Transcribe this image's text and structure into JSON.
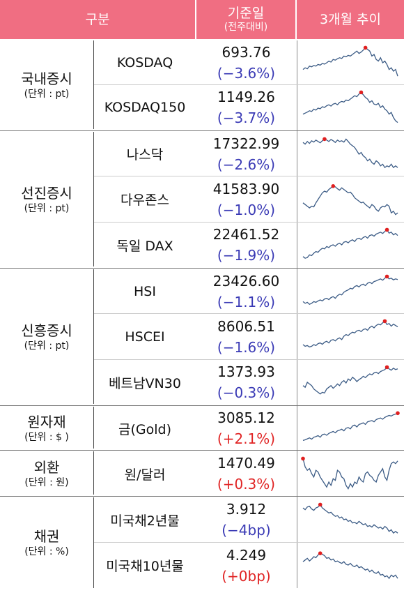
{
  "header": {
    "category": "구분",
    "value_main": "기준일",
    "value_sub": "(전주대비)",
    "trend": "3개월 추이"
  },
  "colors": {
    "header_bg": "#f06e82",
    "negative": "#3a3ab5",
    "positive": "#e02424",
    "spark_line": "#3b5b85",
    "spark_dot": "#e02020"
  },
  "groups": [
    {
      "name": "국내증시",
      "unit": "(단위 : pt)",
      "items": [
        {
          "name": "KOSDAQ",
          "value": "693.76",
          "change": "(−3.6%)",
          "dir": "neg"
        },
        {
          "name": "KOSDAQ150",
          "value": "1149.26",
          "change": "(−3.7%)",
          "dir": "neg"
        }
      ]
    },
    {
      "name": "선진증시",
      "unit": "(단위 : pt)",
      "items": [
        {
          "name": "나스닥",
          "value": "17322.99",
          "change": "(−2.6%)",
          "dir": "neg"
        },
        {
          "name": "다우존스",
          "value": "41583.90",
          "change": "(−1.0%)",
          "dir": "neg"
        },
        {
          "name": "독일 DAX",
          "value": "22461.52",
          "change": "(−1.9%)",
          "dir": "neg"
        }
      ]
    },
    {
      "name": "신흥증시",
      "unit": "(단위 : pt)",
      "items": [
        {
          "name": "HSI",
          "value": "23426.60",
          "change": "(−1.1%)",
          "dir": "neg"
        },
        {
          "name": "HSCEI",
          "value": "8606.51",
          "change": "(−1.6%)",
          "dir": "neg"
        },
        {
          "name": "베트남VN30",
          "value": "1373.93",
          "change": "(−0.3%)",
          "dir": "neg"
        }
      ]
    },
    {
      "name": "원자재",
      "unit": "(단위 : $ )",
      "items": [
        {
          "name": "금(Gold)",
          "value": "3085.12",
          "change": "(+2.1%)",
          "dir": "pos"
        }
      ]
    },
    {
      "name": "외환",
      "unit": "(단위 : 원)",
      "items": [
        {
          "name": "원/달러",
          "value": "1470.49",
          "change": "(+0.3%)",
          "dir": "pos"
        }
      ]
    },
    {
      "name": "채권",
      "unit": "(단위 : %)",
      "items": [
        {
          "name": "미국채2년물",
          "value": "3.912",
          "change": "(−4bp)",
          "dir": "neg"
        },
        {
          "name": "미국채10년물",
          "value": "4.249",
          "change": "(+0bp)",
          "dir": "pos"
        }
      ]
    }
  ],
  "sparklines": [
    [
      0.3,
      0.35,
      0.32,
      0.4,
      0.38,
      0.42,
      0.4,
      0.45,
      0.43,
      0.48,
      0.46,
      0.5,
      0.55,
      0.52,
      0.6,
      0.58,
      0.62,
      0.65,
      0.63,
      0.7,
      0.68,
      0.72,
      0.7,
      0.75,
      0.8,
      0.85,
      0.78,
      0.82,
      0.88,
      0.95,
      0.9,
      0.85,
      0.7,
      0.75,
      0.6,
      0.55,
      0.65,
      0.5,
      0.55,
      0.45,
      0.3,
      0.35,
      0.25,
      0.3,
      0.1
    ],
    [
      0.3,
      0.33,
      0.36,
      0.4,
      0.38,
      0.45,
      0.42,
      0.48,
      0.46,
      0.52,
      0.5,
      0.55,
      0.58,
      0.54,
      0.6,
      0.62,
      0.58,
      0.65,
      0.68,
      0.66,
      0.72,
      0.7,
      0.75,
      0.8,
      0.85,
      0.82,
      0.9,
      0.95,
      0.88,
      0.8,
      0.75,
      0.65,
      0.7,
      0.6,
      0.58,
      0.62,
      0.5,
      0.55,
      0.45,
      0.4,
      0.3,
      0.35,
      0.2,
      0.1,
      0.05
    ],
    [
      0.85,
      0.8,
      0.88,
      0.82,
      0.9,
      0.86,
      0.92,
      0.88,
      0.84,
      0.9,
      0.95,
      0.92,
      0.88,
      0.94,
      0.9,
      0.85,
      0.92,
      0.88,
      0.9,
      0.86,
      0.95,
      0.88,
      0.8,
      0.75,
      0.7,
      0.6,
      0.5,
      0.55,
      0.45,
      0.4,
      0.3,
      0.35,
      0.25,
      0.2,
      0.3,
      0.25,
      0.15,
      0.2,
      0.1,
      0.15,
      0.12,
      0.2,
      0.1,
      0.15,
      0.1
    ],
    [
      0.4,
      0.35,
      0.3,
      0.25,
      0.3,
      0.28,
      0.4,
      0.5,
      0.6,
      0.7,
      0.75,
      0.72,
      0.8,
      0.85,
      0.9,
      0.88,
      0.82,
      0.78,
      0.85,
      0.8,
      0.75,
      0.7,
      0.72,
      0.65,
      0.55,
      0.5,
      0.45,
      0.4,
      0.42,
      0.35,
      0.3,
      0.25,
      0.35,
      0.3,
      0.2,
      0.15,
      0.25,
      0.3,
      0.28,
      0.35,
      0.3,
      0.1,
      0.15,
      0.05,
      0.1
    ],
    [
      0.15,
      0.1,
      0.12,
      0.2,
      0.18,
      0.25,
      0.3,
      0.28,
      0.35,
      0.4,
      0.38,
      0.45,
      0.42,
      0.48,
      0.5,
      0.46,
      0.52,
      0.55,
      0.5,
      0.58,
      0.6,
      0.56,
      0.62,
      0.65,
      0.6,
      0.68,
      0.7,
      0.66,
      0.72,
      0.75,
      0.7,
      0.78,
      0.8,
      0.76,
      0.82,
      0.85,
      0.88,
      0.84,
      0.9,
      0.95,
      0.85,
      0.88,
      0.8,
      0.84,
      0.78
    ],
    [
      0.2,
      0.15,
      0.18,
      0.12,
      0.15,
      0.2,
      0.18,
      0.22,
      0.25,
      0.22,
      0.28,
      0.3,
      0.26,
      0.32,
      0.35,
      0.3,
      0.38,
      0.42,
      0.4,
      0.48,
      0.52,
      0.55,
      0.6,
      0.58,
      0.65,
      0.68,
      0.64,
      0.7,
      0.72,
      0.68,
      0.75,
      0.78,
      0.74,
      0.8,
      0.82,
      0.85,
      0.88,
      0.84,
      0.9,
      0.95,
      0.88,
      0.9,
      0.85,
      0.88,
      0.86
    ],
    [
      0.25,
      0.2,
      0.22,
      0.18,
      0.2,
      0.25,
      0.22,
      0.28,
      0.3,
      0.26,
      0.32,
      0.35,
      0.3,
      0.38,
      0.4,
      0.36,
      0.42,
      0.45,
      0.4,
      0.5,
      0.55,
      0.52,
      0.58,
      0.62,
      0.6,
      0.66,
      0.68,
      0.64,
      0.7,
      0.72,
      0.68,
      0.76,
      0.8,
      0.75,
      0.82,
      0.86,
      0.84,
      0.9,
      0.95,
      0.85,
      0.88,
      0.8,
      0.86,
      0.82,
      0.78
    ],
    [
      0.4,
      0.35,
      0.5,
      0.45,
      0.4,
      0.3,
      0.25,
      0.2,
      0.15,
      0.2,
      0.18,
      0.3,
      0.35,
      0.4,
      0.32,
      0.38,
      0.45,
      0.4,
      0.5,
      0.55,
      0.48,
      0.6,
      0.55,
      0.65,
      0.6,
      0.52,
      0.58,
      0.62,
      0.68,
      0.64,
      0.7,
      0.75,
      0.72,
      0.78,
      0.8,
      0.76,
      0.82,
      0.85,
      0.88,
      0.95,
      0.9,
      0.86,
      0.92,
      0.88,
      0.9
    ],
    [
      0.1,
      0.12,
      0.15,
      0.18,
      0.14,
      0.2,
      0.22,
      0.25,
      0.2,
      0.28,
      0.3,
      0.26,
      0.32,
      0.35,
      0.38,
      0.34,
      0.4,
      0.42,
      0.45,
      0.4,
      0.48,
      0.5,
      0.46,
      0.55,
      0.58,
      0.52,
      0.6,
      0.62,
      0.65,
      0.6,
      0.68,
      0.7,
      0.72,
      0.68,
      0.75,
      0.78,
      0.8,
      0.76,
      0.82,
      0.85,
      0.88,
      0.86,
      0.9,
      0.92,
      0.95
    ],
    [
      0.95,
      0.7,
      0.6,
      0.65,
      0.5,
      0.4,
      0.6,
      0.55,
      0.4,
      0.3,
      0.2,
      0.1,
      0.25,
      0.15,
      0.35,
      0.3,
      0.6,
      0.55,
      0.4,
      0.35,
      0.15,
      0.05,
      0.2,
      0.1,
      0.25,
      0.2,
      0.4,
      0.3,
      0.25,
      0.5,
      0.55,
      0.45,
      0.4,
      0.3,
      0.25,
      0.45,
      0.55,
      0.65,
      0.4,
      0.3,
      0.6,
      0.8,
      0.85,
      0.8,
      0.88
    ],
    [
      0.85,
      0.8,
      0.88,
      0.9,
      0.82,
      0.78,
      0.85,
      0.88,
      0.95,
      0.85,
      0.8,
      0.75,
      0.7,
      0.72,
      0.65,
      0.6,
      0.62,
      0.55,
      0.58,
      0.5,
      0.52,
      0.45,
      0.48,
      0.4,
      0.42,
      0.38,
      0.45,
      0.4,
      0.35,
      0.38,
      0.3,
      0.32,
      0.28,
      0.35,
      0.3,
      0.25,
      0.28,
      0.22,
      0.3,
      0.25,
      0.15,
      0.2,
      0.1,
      0.15,
      0.1
    ],
    [
      0.6,
      0.65,
      0.7,
      0.62,
      0.68,
      0.75,
      0.72,
      0.8,
      0.85,
      0.82,
      0.78,
      0.7,
      0.72,
      0.65,
      0.68,
      0.6,
      0.62,
      0.58,
      0.55,
      0.6,
      0.52,
      0.5,
      0.55,
      0.48,
      0.45,
      0.5,
      0.42,
      0.45,
      0.4,
      0.35,
      0.38,
      0.3,
      0.35,
      0.28,
      0.25,
      0.3,
      0.2,
      0.22,
      0.15,
      0.18,
      0.1,
      0.2,
      0.15,
      0.2,
      0.1
    ]
  ],
  "peaks": [
    29,
    27,
    10,
    14,
    39,
    39,
    38,
    39,
    44,
    0,
    8,
    8
  ]
}
